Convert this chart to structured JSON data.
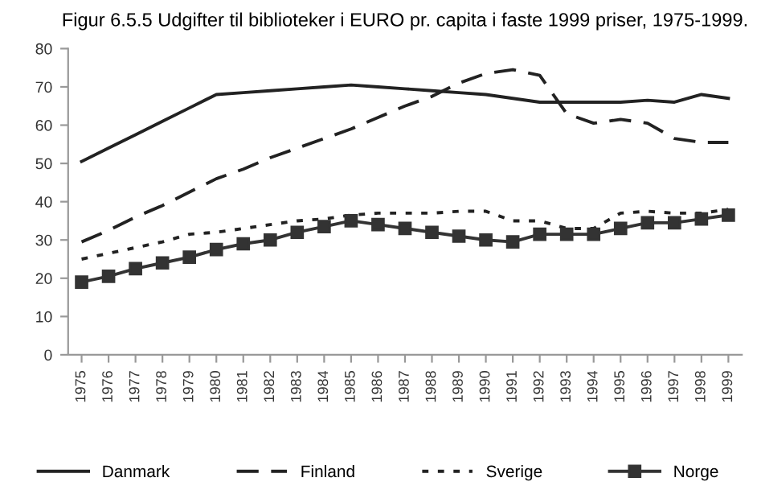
{
  "chart_data": {
    "type": "line",
    "title": "Figur 6.5.5 Udgifter til biblioteker i EURO pr. capita i faste 1999 priser, 1975-1999.",
    "categories": [
      "1975",
      "1976",
      "1977",
      "1978",
      "1979",
      "1980",
      "1981",
      "1982",
      "1983",
      "1984",
      "1985",
      "1986",
      "1987",
      "1988",
      "1989",
      "1990",
      "1991",
      "1992",
      "1993",
      "1994",
      "1995",
      "1996",
      "1997",
      "1998",
      "1999"
    ],
    "series": [
      {
        "name": "Danmark",
        "color": "#222222",
        "line_style": "solid",
        "marker": "none",
        "values": [
          50.5,
          54,
          57.5,
          61,
          64.5,
          68,
          68.5,
          69,
          69.5,
          70,
          70.5,
          70,
          69.5,
          69,
          68.5,
          68,
          67,
          66,
          66,
          66,
          66,
          66.5,
          66,
          68,
          67
        ]
      },
      {
        "name": "Finland",
        "color": "#222222",
        "line_style": "dashed",
        "marker": "none",
        "values": [
          29.5,
          32.5,
          36,
          39,
          42.5,
          46,
          48.5,
          51.5,
          54,
          56.5,
          59,
          62,
          65,
          67.5,
          71,
          73.5,
          74.5,
          73,
          63,
          60.5,
          61.5,
          60.5,
          56.5,
          55.5,
          55.5
        ]
      },
      {
        "name": "Sverige",
        "color": "#222222",
        "line_style": "dotted",
        "marker": "none",
        "values": [
          25,
          26.5,
          28,
          29.5,
          31.5,
          32,
          33,
          34,
          35,
          35.5,
          36.5,
          37,
          37,
          37,
          37.5,
          37.5,
          35,
          35,
          33,
          33,
          37,
          37.5,
          37,
          37,
          38
        ]
      },
      {
        "name": "Norge",
        "color": "#333333",
        "line_style": "solid",
        "marker": "square",
        "values": [
          19,
          20.5,
          22.5,
          24,
          25.5,
          27.5,
          29,
          30,
          32,
          33.5,
          35,
          34,
          33,
          32,
          31,
          30,
          29.5,
          31.5,
          31.5,
          31.5,
          33,
          34.5,
          34.5,
          35.5,
          36.5
        ]
      }
    ],
    "ylim": [
      0,
      80
    ],
    "yticks": [
      0,
      10,
      20,
      30,
      40,
      50,
      60,
      70,
      80
    ],
    "grid": false,
    "legend": "bottom"
  }
}
